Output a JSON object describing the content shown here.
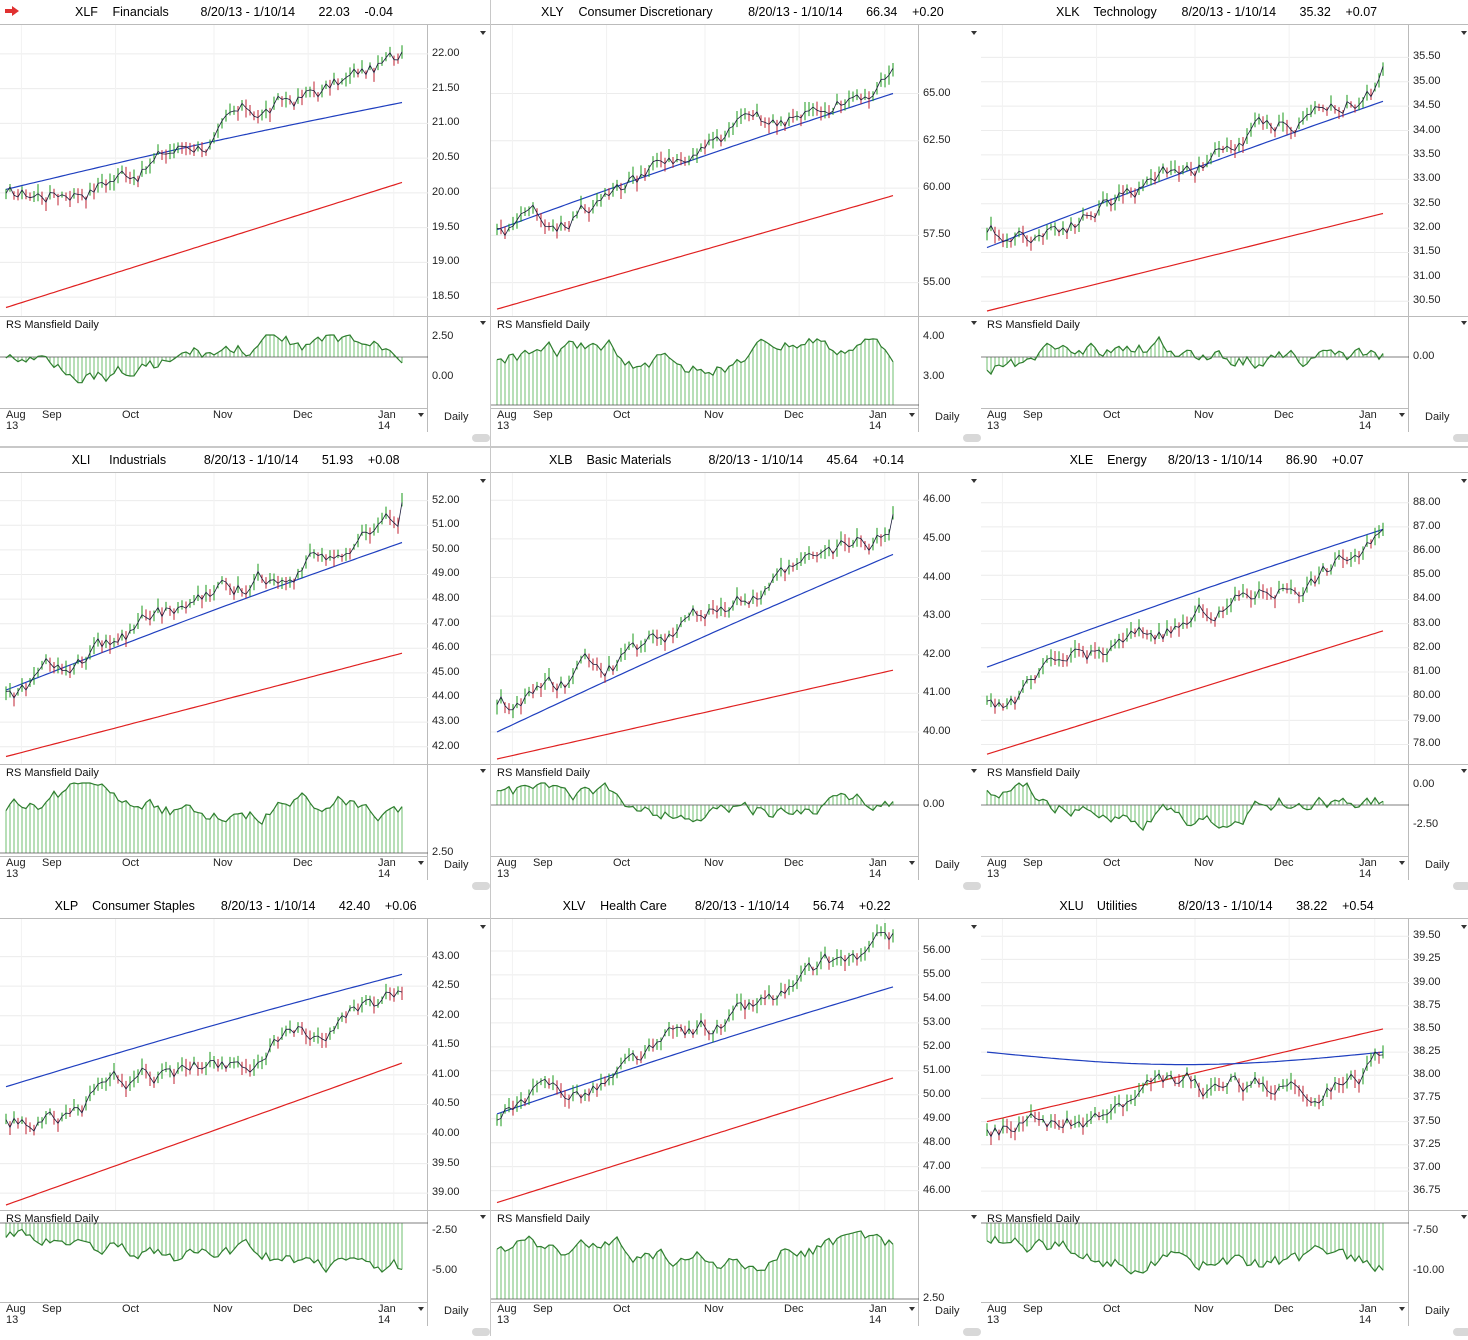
{
  "panels": [
    {
      "symbol": "XLF",
      "name": "Financials",
      "range": "8/20/13 - 1/10/14",
      "last": "22.03",
      "change": "-0.04",
      "yticks": [
        "22.00",
        "21.50",
        "21.00",
        "20.50",
        "20.00",
        "19.50",
        "19.00",
        "18.50"
      ],
      "rsticks": [
        "2.50",
        "0.00"
      ]
    },
    {
      "symbol": "XLY",
      "name": "Consumer Discretionary",
      "range": "8/20/13 - 1/10/14",
      "last": "66.34",
      "change": "+0.20",
      "yticks": [
        "65.00",
        "62.50",
        "60.00",
        "57.50",
        "55.00"
      ],
      "rsticks": [
        "4.00",
        "3.00"
      ]
    },
    {
      "symbol": "XLK",
      "name": "Technology",
      "range": "8/20/13 - 1/10/14",
      "last": "35.32",
      "change": "+0.07",
      "yticks": [
        "35.50",
        "35.00",
        "34.50",
        "34.00",
        "33.50",
        "33.00",
        "32.50",
        "32.00",
        "31.50",
        "31.00",
        "30.50"
      ],
      "rsticks": [
        "0.00"
      ]
    },
    {
      "symbol": "XLI",
      "name": "Industrials",
      "range": "8/20/13 - 1/10/14",
      "last": "51.93",
      "change": "+0.08",
      "yticks": [
        "52.00",
        "51.00",
        "50.00",
        "49.00",
        "48.00",
        "47.00",
        "46.00",
        "45.00",
        "44.00",
        "43.00",
        "42.00"
      ],
      "rsticks": [
        "2.50"
      ]
    },
    {
      "symbol": "XLB",
      "name": "Basic Materials",
      "range": "8/20/13 - 1/10/14",
      "last": "45.64",
      "change": "+0.14",
      "yticks": [
        "46.00",
        "45.00",
        "44.00",
        "43.00",
        "42.00",
        "41.00",
        "40.00"
      ],
      "rsticks": [
        "0.00"
      ]
    },
    {
      "symbol": "XLE",
      "name": "Energy",
      "range": "8/20/13 - 1/10/14",
      "last": "86.90",
      "change": "+0.07",
      "yticks": [
        "88.00",
        "87.00",
        "86.00",
        "85.00",
        "84.00",
        "83.00",
        "82.00",
        "81.00",
        "80.00",
        "79.00",
        "78.00"
      ],
      "rsticks": [
        "0.00",
        "-2.50"
      ]
    },
    {
      "symbol": "XLP",
      "name": "Consumer Staples",
      "range": "8/20/13 - 1/10/14",
      "last": "42.40",
      "change": "+0.06",
      "yticks": [
        "43.00",
        "42.50",
        "42.00",
        "41.50",
        "41.00",
        "40.50",
        "40.00",
        "39.50",
        "39.00"
      ],
      "rsticks": [
        "-2.50",
        "-5.00"
      ]
    },
    {
      "symbol": "XLV",
      "name": "Health Care",
      "range": "8/20/13 - 1/10/14",
      "last": "56.74",
      "change": "+0.22",
      "yticks": [
        "56.00",
        "55.00",
        "54.00",
        "53.00",
        "52.00",
        "51.00",
        "50.00",
        "49.00",
        "48.00",
        "47.00",
        "46.00"
      ],
      "rsticks": [
        "2.50"
      ]
    },
    {
      "symbol": "XLU",
      "name": "Utilities",
      "range": "8/20/13 - 1/10/14",
      "last": "38.22",
      "change": "+0.54",
      "yticks": [
        "39.50",
        "39.25",
        "39.00",
        "38.75",
        "38.50",
        "38.25",
        "38.00",
        "37.75",
        "37.50",
        "37.25",
        "37.00",
        "36.75"
      ],
      "rsticks": [
        "-7.50",
        "-10.00"
      ]
    }
  ],
  "common": {
    "rs_label": "RS Mansfield Daily",
    "months": [
      "Aug",
      "Sep",
      "Oct",
      "Nov",
      "Dec",
      "Jan"
    ],
    "year_start": "13",
    "year_end": "14",
    "period": "Daily"
  },
  "colors": {
    "ma_short": "#1f3fbf",
    "ma_long": "#e02020",
    "up_bar": "#1a9a1a",
    "down_bar": "#c02030",
    "rs_line": "#2e7d2e",
    "rs_fill": "#6fbf6f"
  },
  "chart_data": [
    {
      "type": "line",
      "title": "XLF Financials",
      "ylim": [
        18.3,
        22.3
      ],
      "start": 19.9,
      "end": 22.03,
      "ma50": [
        20.05,
        21.3
      ],
      "ma200": [
        18.35,
        20.15
      ],
      "rs_zero": "0.00"
    },
    {
      "type": "line",
      "title": "XLY Consumer Discretionary",
      "ylim": [
        53.5,
        68.2
      ],
      "start": 58.0,
      "end": 66.34,
      "ma50": [
        57.8,
        65.0
      ],
      "ma200": [
        53.6,
        59.6
      ]
    },
    {
      "type": "line",
      "title": "XLK Technology",
      "ylim": [
        30.3,
        36.0
      ],
      "start": 31.8,
      "end": 35.32,
      "ma50": [
        31.6,
        34.6
      ],
      "ma200": [
        30.3,
        32.3
      ]
    },
    {
      "type": "line",
      "title": "XLI Industrials",
      "ylim": [
        41.5,
        52.8
      ],
      "start": 44.4,
      "end": 51.93,
      "ma50": [
        44.3,
        50.3
      ],
      "ma200": [
        41.6,
        45.8
      ]
    },
    {
      "type": "line",
      "title": "XLB Basic Materials",
      "ylim": [
        39.3,
        46.5
      ],
      "start": 40.6,
      "end": 45.64,
      "ma50": [
        40.0,
        44.6
      ],
      "ma200": [
        39.3,
        41.6
      ]
    },
    {
      "type": "line",
      "title": "XLE Energy",
      "ylim": [
        77.4,
        88.9
      ],
      "start": 80.0,
      "end": 86.9,
      "ma50": [
        81.2,
        86.9
      ],
      "ma200": [
        77.6,
        82.7
      ]
    },
    {
      "type": "line",
      "title": "XLP Consumer Staples",
      "ylim": [
        38.8,
        43.5
      ],
      "start": 40.2,
      "end": 42.4,
      "ma50": [
        40.8,
        42.7
      ],
      "ma200": [
        38.8,
        41.2
      ]
    },
    {
      "type": "line",
      "title": "XLV Health Care",
      "ylim": [
        45.4,
        57.0
      ],
      "start": 49.2,
      "end": 56.74,
      "ma50": [
        49.2,
        54.5
      ],
      "ma200": [
        45.5,
        50.7
      ]
    },
    {
      "type": "line",
      "title": "XLU Utilities",
      "ylim": [
        36.6,
        39.6
      ],
      "start": 37.4,
      "end": 38.22,
      "ma50": [
        38.25,
        38.25
      ],
      "ma200": [
        37.5,
        38.5
      ]
    }
  ]
}
